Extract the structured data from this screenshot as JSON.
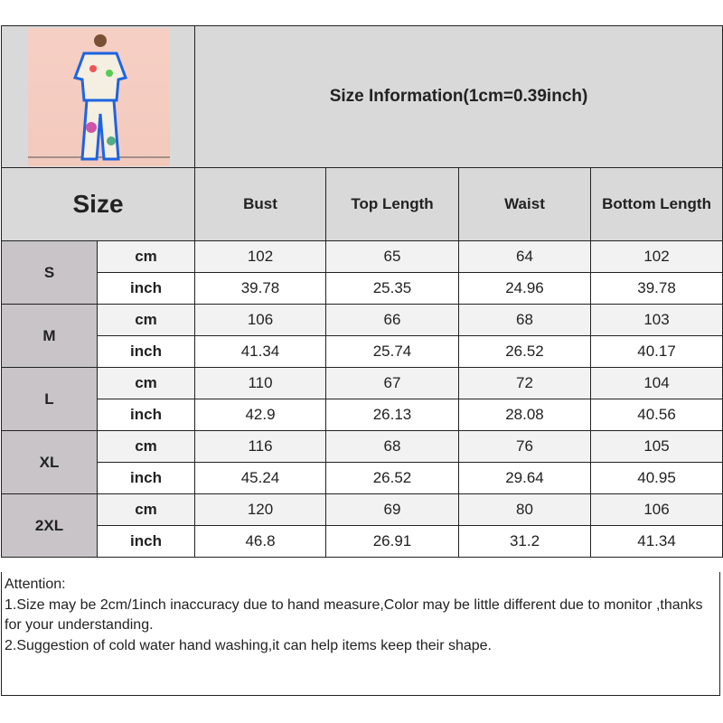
{
  "title": "Size Information(1cm=0.39inch)",
  "size_header": "Size",
  "columns": [
    "Bust",
    "Top Length",
    "Waist",
    "Bottom Length"
  ],
  "units": {
    "cm": "cm",
    "inch": "inch"
  },
  "sizes": [
    {
      "label": "S",
      "cm": [
        "102",
        "65",
        "64",
        "102"
      ],
      "inch": [
        "39.78",
        "25.35",
        "24.96",
        "39.78"
      ]
    },
    {
      "label": "M",
      "cm": [
        "106",
        "66",
        "68",
        "103"
      ],
      "inch": [
        "41.34",
        "25.74",
        "26.52",
        "40.17"
      ]
    },
    {
      "label": "L",
      "cm": [
        "110",
        "67",
        "72",
        "104"
      ],
      "inch": [
        "42.9",
        "26.13",
        "28.08",
        "40.56"
      ]
    },
    {
      "label": "XL",
      "cm": [
        "116",
        "68",
        "76",
        "105"
      ],
      "inch": [
        "45.24",
        "26.52",
        "29.64",
        "40.95"
      ]
    },
    {
      "label": "2XL",
      "cm": [
        "120",
        "69",
        "80",
        "106"
      ],
      "inch": [
        "46.8",
        "26.91",
        "31.2",
        "41.34"
      ]
    }
  ],
  "attention": {
    "heading": "Attention:",
    "lines": [
      "1.Size may be 2cm/1inch inaccuracy due to hand measure,Color may be little different due to monitor ,thanks for your understanding.",
      "2.Suggestion of cold water hand washing,it can help items keep their shape."
    ]
  }
}
